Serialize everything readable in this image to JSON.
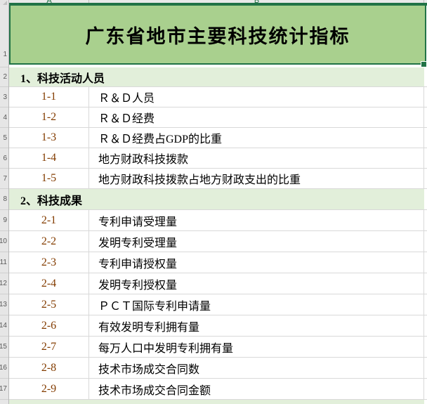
{
  "sheet": {
    "column_headers": [
      {
        "label": "A"
      },
      {
        "label": "B"
      }
    ],
    "row_numbers": [
      "1",
      "2",
      "3",
      "4",
      "5",
      "6",
      "7",
      "8",
      "9",
      "10",
      "11",
      "12",
      "13",
      "14",
      "15",
      "16",
      "17"
    ],
    "title": "广东省地市主要科技统计指标",
    "sections": [
      {
        "label": "1、科技活动人员",
        "items": [
          {
            "code": "1-1",
            "name": "Ｒ＆Ｄ人员"
          },
          {
            "code": "1-2",
            "name": "Ｒ＆Ｄ经费"
          },
          {
            "code": "1-3",
            "name": "Ｒ＆Ｄ经费占GDP的比重"
          },
          {
            "code": "1-4",
            "name": "地方财政科技拨款"
          },
          {
            "code": "1-5",
            "name": "地方财政科技拨款占地方财政支出的比重"
          }
        ]
      },
      {
        "label": "2、科技成果",
        "items": [
          {
            "code": "2-1",
            "name": "专利申请受理量"
          },
          {
            "code": "2-2",
            "name": "发明专利受理量"
          },
          {
            "code": "2-3",
            "name": "专利申请授权量"
          },
          {
            "code": "2-4",
            "name": "发明专利授权量"
          },
          {
            "code": "2-5",
            "name": "ＰＣＴ国际专利申请量"
          },
          {
            "code": "2-6",
            "name": "有效发明专利拥有量"
          },
          {
            "code": "2-7",
            "name": "每万人口中发明专利拥有量"
          },
          {
            "code": "2-8",
            "name": "技术市场成交合同数"
          },
          {
            "code": "2-9",
            "name": "技术市场成交合同金额"
          }
        ]
      }
    ],
    "colors": {
      "title_fill": "#A9D08E",
      "section_fill": "#E2EFDA",
      "selection_border": "#217346",
      "code_text": "#833C00",
      "grid_line": "#D9D9D9",
      "row_header_bg": "#E6E6E6",
      "header_letter": "#1F7045"
    }
  }
}
